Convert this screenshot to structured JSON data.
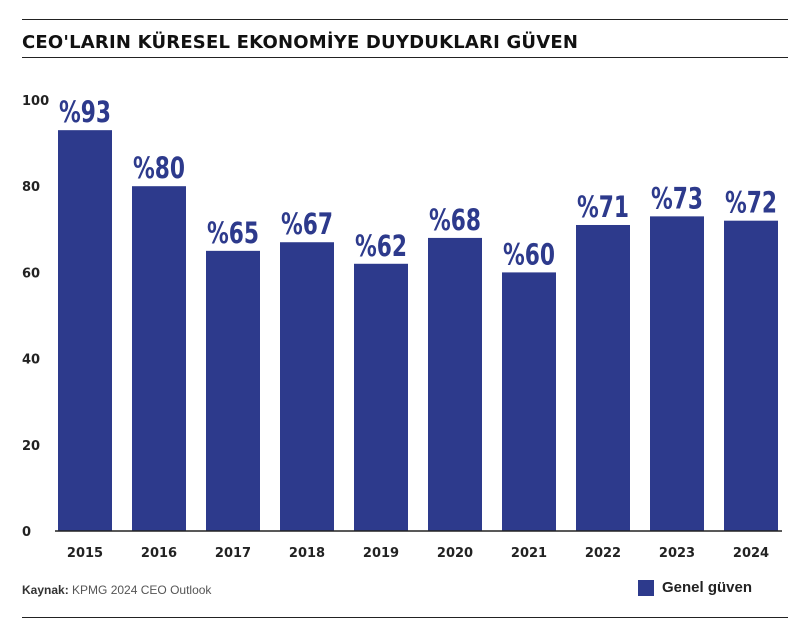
{
  "header": {
    "title": "CEO'LARIN KÜRESEL EKONOMİYE DUYDUKLARI GÜVEN"
  },
  "source": {
    "label": "Kaynak:",
    "text": "KPMG 2024 CEO Outlook"
  },
  "colors": {
    "bar": "#2d3a8c",
    "label": "#2d3a8c",
    "axis": "#222222"
  },
  "chart_data": {
    "type": "bar",
    "title": "CEO'LARIN KÜRESEL EKONOMİYE DUYDUKLARI GÜVEN",
    "categories": [
      "2015",
      "2016",
      "2017",
      "2018",
      "2019",
      "2020",
      "2021",
      "2022",
      "2023",
      "2024"
    ],
    "series": [
      {
        "name": "Genel güven",
        "values": [
          93,
          80,
          65,
          67,
          62,
          68,
          60,
          71,
          73,
          72
        ],
        "data_labels": [
          "%93",
          "%80",
          "%65",
          "%67",
          "%62",
          "%68",
          "%60",
          "%71",
          "%73",
          "%72"
        ]
      }
    ],
    "ylim": [
      0,
      100
    ],
    "yticks": [
      0,
      20,
      40,
      60,
      80,
      100
    ],
    "xlabel": "",
    "ylabel": "",
    "grid": false,
    "legend": "bottom-right"
  }
}
